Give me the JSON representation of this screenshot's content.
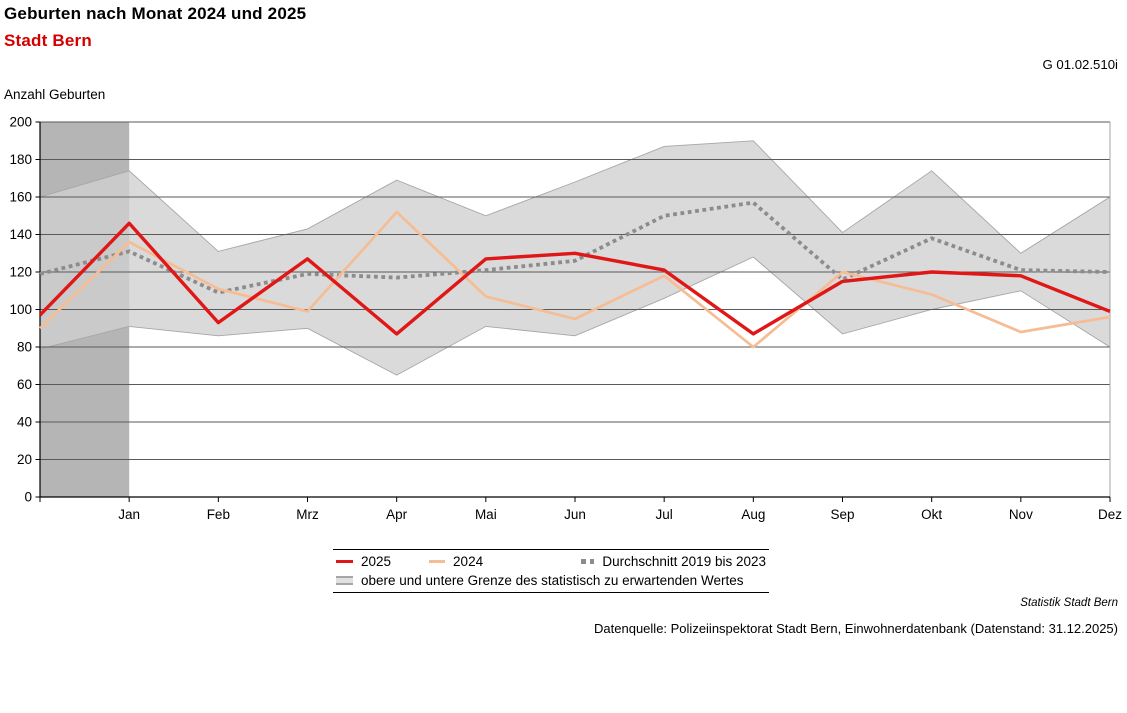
{
  "header": {
    "title": "Geburten nach Monat 2024 und 2025",
    "subtitle": "Stadt Bern",
    "figure_id": "G 01.02.510i"
  },
  "chart_data": {
    "type": "line",
    "ylabel": "Anzahl Geburten",
    "ylim": [
      0,
      200
    ],
    "yticks": [
      0,
      20,
      40,
      60,
      80,
      100,
      120,
      140,
      160,
      180,
      200
    ],
    "grid": "horizontal",
    "legend_position": "bottom-center",
    "categories": [
      "",
      "Jan",
      "Feb",
      "Mrz",
      "Apr",
      "Mai",
      "Jun",
      "Jul",
      "Aug",
      "Sep",
      "Okt",
      "Nov",
      "Dez"
    ],
    "layout_note": "first point of each series lies on the y-axis; shaded column highlights the segment left of Jan",
    "series": [
      {
        "name": "2025",
        "style": "solid",
        "color": "#e01717",
        "values": [
          97,
          146,
          93,
          127,
          87,
          127,
          130,
          121,
          87,
          115,
          120,
          118,
          99
        ]
      },
      {
        "name": "2024",
        "style": "solid",
        "color": "#f6bd94",
        "values": [
          90,
          136,
          111,
          99,
          152,
          107,
          95,
          118,
          80,
          120,
          108,
          88,
          96
        ]
      },
      {
        "name": "Durchschnitt 2019 bis 2023",
        "style": "dotted",
        "color": "#8c8c8c",
        "values": [
          119,
          131,
          109,
          119,
          117,
          121,
          126,
          150,
          157,
          116,
          138,
          121,
          120
        ]
      }
    ],
    "band": {
      "name": "obere und untere Grenze des statistisch zu erwartenden Wertes",
      "fill": "#d9d9d9",
      "upper": [
        160,
        174,
        131,
        143,
        169,
        150,
        168,
        187,
        190,
        141,
        174,
        130,
        160
      ],
      "lower": [
        79,
        91,
        86,
        90,
        65,
        91,
        86,
        106,
        128,
        87,
        100,
        110,
        80
      ]
    },
    "highlight_column": {
      "color": "#b5b5b5",
      "from_index": 0,
      "to_index": 1
    }
  },
  "legend": {
    "items": [
      {
        "label": "2025",
        "swatch": "red-line"
      },
      {
        "label": "2024",
        "swatch": "orange-line"
      },
      {
        "label": "Durchschnitt 2019 bis 2023",
        "swatch": "gray-dotted"
      },
      {
        "label": "obere und untere Grenze des statistisch zu erwartenden Wertes",
        "swatch": "gray-band"
      }
    ]
  },
  "footer": {
    "attribution": "Statistik Stadt Bern",
    "source": "Datenquelle: Polizeiinspektorat Stadt Bern, Einwohnerdatenbank (Datenstand: 31.12.2025)"
  }
}
